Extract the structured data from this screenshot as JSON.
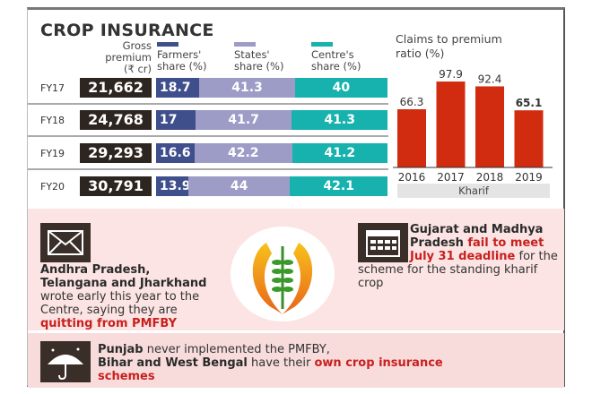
{
  "title": "CROP INSURANCE",
  "headers": {
    "gross": [
      "Gross",
      "premium",
      "(₹ cr)"
    ],
    "farmers": [
      "Farmers'",
      "share (%)"
    ],
    "states": [
      "States'",
      "share (%)"
    ],
    "centre": [
      "Centre's",
      "share (%)"
    ]
  },
  "colors": {
    "farmers": "#3f4f8c",
    "states": "#9d9cc7",
    "centre": "#17b2ae",
    "gross": "#2d2520",
    "bar": "#d12c0f",
    "pink": "#fbe4e3"
  },
  "rows": [
    {
      "fy": "FY17",
      "gross": "21,662",
      "farmers": 18.7,
      "states": 41.3,
      "centre": 40
    },
    {
      "fy": "FY18",
      "gross": "24,768",
      "farmers": 17,
      "states": 41.7,
      "centre": 41.3
    },
    {
      "fy": "FY19",
      "gross": "29,293",
      "farmers": 16.6,
      "states": 42.2,
      "centre": 41.2
    },
    {
      "fy": "FY20",
      "gross": "30,791",
      "farmers": 13.9,
      "states": 44,
      "centre": 42.1
    }
  ],
  "chart_data": {
    "type": "bar",
    "title": "Claims to premium ratio (%)",
    "title_lines": [
      "Claims to premium",
      "ratio (%)"
    ],
    "categories": [
      "2016",
      "2017",
      "2018",
      "2019"
    ],
    "values": [
      66.3,
      97.9,
      92.4,
      65.1
    ],
    "labels": [
      "66.3",
      "97.9",
      "92.4",
      "65.1"
    ],
    "xlabel": "Kharif",
    "ylim": [
      0,
      100
    ]
  },
  "notes": {
    "left": {
      "bold": "Andhra Pradesh, Telangana and Jharkhand",
      "text": " wrote early this year to the Centre, saying they are ",
      "red": "quitting from PMFBY"
    },
    "right": {
      "bold": "Gujarat and Madhya Pradesh",
      "red": " fail to meet July 31 deadline",
      "text": " for the scheme for the standing kharif crop"
    },
    "bottom": {
      "bold1": "Punjab",
      "text1": " never implemented the PMFBY,",
      "bold2": "Bihar and West Bengal",
      "text2": " have their ",
      "red": "own crop insurance schemes"
    }
  }
}
